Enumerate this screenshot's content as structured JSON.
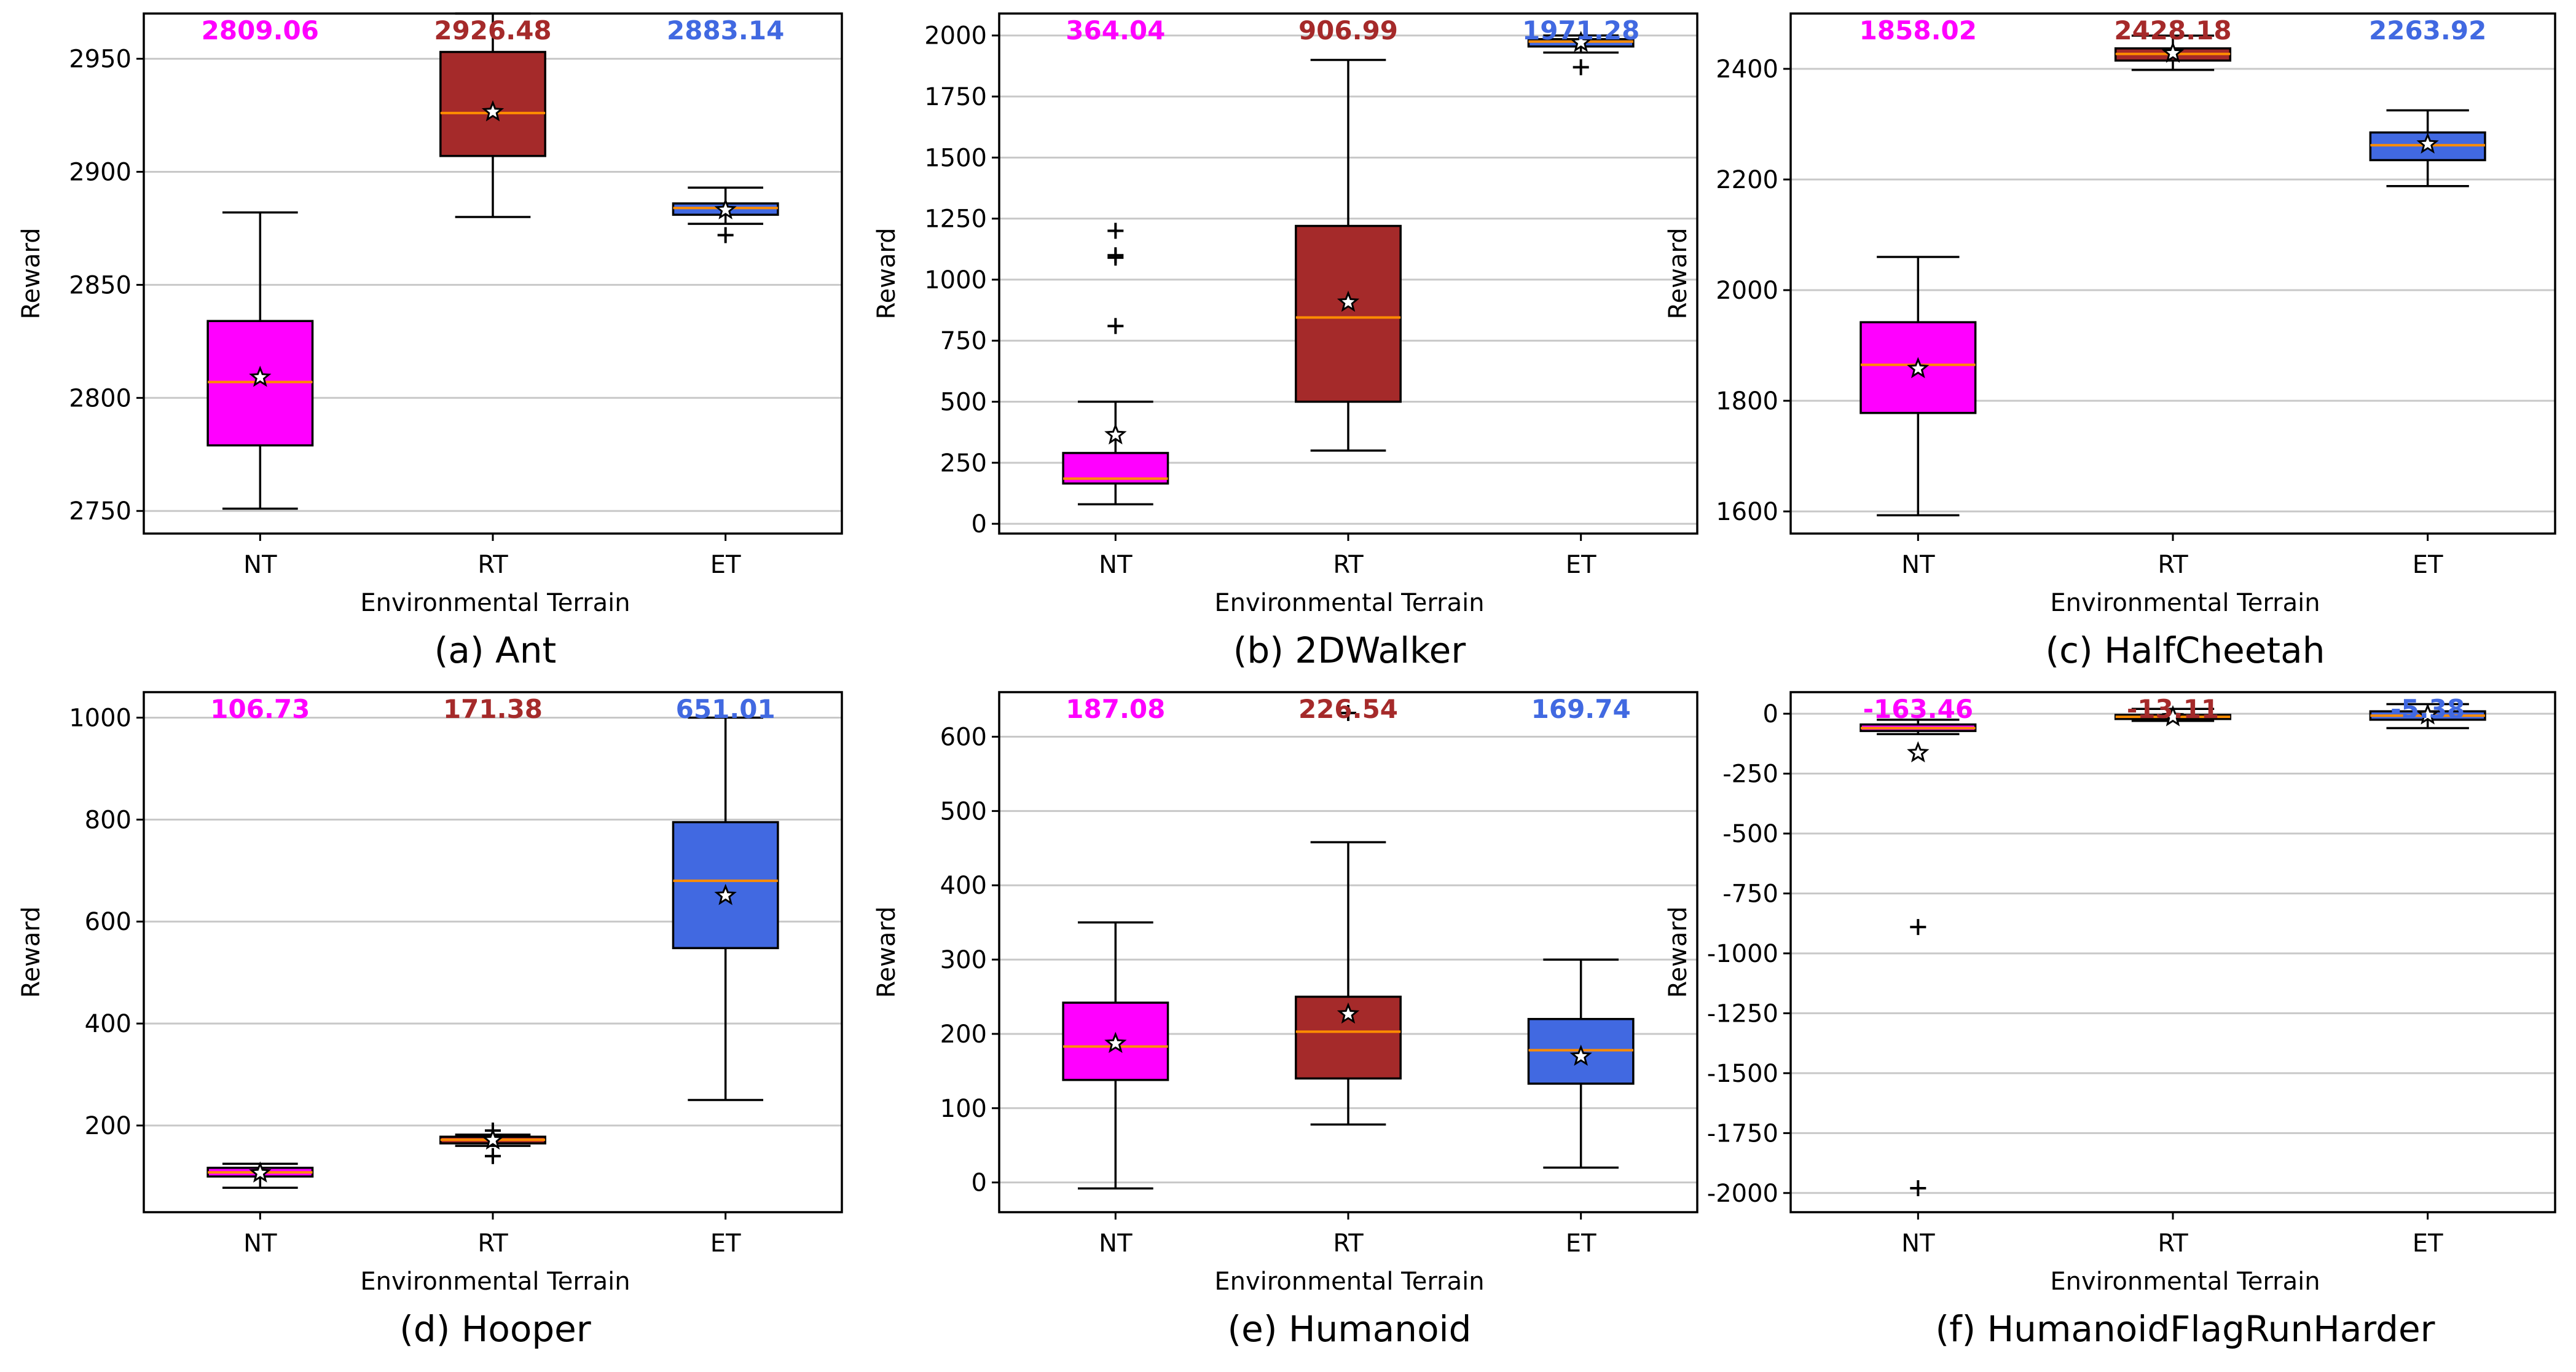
{
  "colors": {
    "NT": "#ff00ff",
    "RT": "#a52a2a",
    "ET": "#4169e1",
    "median": "#ff8c00"
  },
  "chart_data": [
    {
      "type": "box",
      "caption": "(a) Ant",
      "title": "",
      "xlabel": "Environmental  Terrain",
      "ylabel": "Reward",
      "categories": [
        "NT",
        "RT",
        "ET"
      ],
      "ylim": [
        2740,
        2970
      ],
      "yticks": [
        2750,
        2800,
        2850,
        2900,
        2950
      ],
      "ytick_labels": [
        "2750",
        "2800",
        "2850",
        "2900",
        "2950"
      ],
      "mean_labels": [
        "2809.06",
        "2926.48",
        "2883.14"
      ],
      "boxes": [
        {
          "name": "NT",
          "whisker_low": 2751,
          "q1": 2779,
          "median": 2807,
          "q3": 2834,
          "whisker_high": 2882,
          "mean": 2809.06,
          "outliers": []
        },
        {
          "name": "RT",
          "whisker_low": 2880,
          "q1": 2907,
          "median": 2926,
          "q3": 2953,
          "whisker_high": 2970,
          "mean": 2926.48,
          "outliers": []
        },
        {
          "name": "ET",
          "whisker_low": 2877,
          "q1": 2881,
          "median": 2884,
          "q3": 2886,
          "whisker_high": 2893,
          "mean": 2883.14,
          "outliers": [
            2872
          ]
        }
      ]
    },
    {
      "type": "box",
      "caption": "(b) 2DWalker",
      "title": "",
      "xlabel": "Environmental  Terrain",
      "ylabel": "Reward",
      "categories": [
        "NT",
        "RT",
        "ET"
      ],
      "ylim": [
        -40,
        2090
      ],
      "yticks": [
        0,
        250,
        500,
        750,
        1000,
        1250,
        1500,
        1750,
        2000
      ],
      "ytick_labels": [
        "0",
        "250",
        "500",
        "750",
        "1000",
        "1250",
        "1500",
        "1750",
        "2000"
      ],
      "mean_labels": [
        "364.04",
        "906.99",
        "1971.28"
      ],
      "boxes": [
        {
          "name": "NT",
          "whisker_low": 80,
          "q1": 165,
          "median": 185,
          "q3": 290,
          "whisker_high": 500,
          "mean": 364.04,
          "outliers": [
            810,
            1090,
            1100,
            1200
          ]
        },
        {
          "name": "RT",
          "whisker_low": 300,
          "q1": 500,
          "median": 845,
          "q3": 1220,
          "whisker_high": 1900,
          "mean": 906.99,
          "outliers": []
        },
        {
          "name": "ET",
          "whisker_low": 1930,
          "q1": 1955,
          "median": 1975,
          "q3": 1985,
          "whisker_high": 2000,
          "mean": 1971.28,
          "outliers": [
            1870
          ]
        }
      ]
    },
    {
      "type": "box",
      "caption": "(c) HalfCheetah",
      "title": "",
      "xlabel": "Environmental  Terrain",
      "ylabel": "Reward",
      "categories": [
        "NT",
        "RT",
        "ET"
      ],
      "ylim": [
        1560,
        2500
      ],
      "yticks": [
        1600,
        1800,
        2000,
        2200,
        2400
      ],
      "ytick_labels": [
        "1600",
        "1800",
        "2000",
        "2200",
        "2400"
      ],
      "mean_labels": [
        "1858.02",
        "2428.18",
        "2263.92"
      ],
      "boxes": [
        {
          "name": "NT",
          "whisker_low": 1593,
          "q1": 1778,
          "median": 1865,
          "q3": 1942,
          "whisker_high": 2060,
          "mean": 1858.02,
          "outliers": []
        },
        {
          "name": "RT",
          "whisker_low": 2398,
          "q1": 2415,
          "median": 2427,
          "q3": 2437,
          "whisker_high": 2460,
          "mean": 2428.18,
          "outliers": []
        },
        {
          "name": "ET",
          "whisker_low": 2188,
          "q1": 2235,
          "median": 2262,
          "q3": 2285,
          "whisker_high": 2325,
          "mean": 2263.92,
          "outliers": []
        }
      ]
    },
    {
      "type": "box",
      "caption": "(d) Hooper",
      "title": "",
      "xlabel": "Environmental  Terrain",
      "ylabel": "Reward",
      "categories": [
        "NT",
        "RT",
        "ET"
      ],
      "ylim": [
        30,
        1050
      ],
      "yticks": [
        200,
        400,
        600,
        800,
        1000
      ],
      "ytick_labels": [
        "200",
        "400",
        "600",
        "800",
        "1000"
      ],
      "mean_labels": [
        "106.73",
        "171.38",
        "651.01"
      ],
      "boxes": [
        {
          "name": "NT",
          "whisker_low": 78,
          "q1": 100,
          "median": 108,
          "q3": 117,
          "whisker_high": 125,
          "mean": 106.73,
          "outliers": []
        },
        {
          "name": "RT",
          "whisker_low": 160,
          "q1": 165,
          "median": 172,
          "q3": 178,
          "whisker_high": 182,
          "mean": 171.38,
          "outliers": [
            140,
            190
          ]
        },
        {
          "name": "ET",
          "whisker_low": 250,
          "q1": 548,
          "median": 680,
          "q3": 795,
          "whisker_high": 1000,
          "mean": 651.01,
          "outliers": []
        }
      ]
    },
    {
      "type": "box",
      "caption": "(e) Humanoid",
      "title": "",
      "xlabel": "Environmental  Terrain",
      "ylabel": "Reward",
      "categories": [
        "NT",
        "RT",
        "ET"
      ],
      "ylim": [
        -40,
        660
      ],
      "yticks": [
        0,
        100,
        200,
        300,
        400,
        500,
        600
      ],
      "ytick_labels": [
        "0",
        "100",
        "200",
        "300",
        "400",
        "500",
        "600"
      ],
      "mean_labels": [
        "187.08",
        "226.54",
        "169.74"
      ],
      "boxes": [
        {
          "name": "NT",
          "whisker_low": -8,
          "q1": 138,
          "median": 183,
          "q3": 242,
          "whisker_high": 350,
          "mean": 187.08,
          "outliers": []
        },
        {
          "name": "RT",
          "whisker_low": 78,
          "q1": 140,
          "median": 203,
          "q3": 250,
          "whisker_high": 458,
          "mean": 226.54,
          "outliers": [
            632
          ]
        },
        {
          "name": "ET",
          "whisker_low": 20,
          "q1": 133,
          "median": 178,
          "q3": 220,
          "whisker_high": 300,
          "mean": 169.74,
          "outliers": []
        }
      ]
    },
    {
      "type": "box",
      "caption": "(f) HumanoidFlagRunHarder",
      "title": "",
      "xlabel": "Environmental  Terrain",
      "ylabel": "Reward",
      "categories": [
        "NT",
        "RT",
        "ET"
      ],
      "ylim": [
        -2080,
        90
      ],
      "yticks": [
        -2000,
        -1750,
        -1500,
        -1250,
        -1000,
        -750,
        -500,
        -250,
        0
      ],
      "ytick_labels": [
        "-2000",
        "-1750",
        "-1500",
        "-1250",
        "-1000",
        "-750",
        "-500",
        "-250",
        "0"
      ],
      "mean_labels": [
        "-163.46",
        "-13.11",
        "-5.38"
      ],
      "boxes": [
        {
          "name": "NT",
          "whisker_low": -85,
          "q1": -72,
          "median": -60,
          "q3": -45,
          "whisker_high": -25,
          "mean": -163.46,
          "outliers": [
            -890,
            -1980
          ]
        },
        {
          "name": "RT",
          "whisker_low": -30,
          "q1": -22,
          "median": -13,
          "q3": -5,
          "whisker_high": 20,
          "mean": -13.11,
          "outliers": []
        },
        {
          "name": "ET",
          "whisker_low": -60,
          "q1": -25,
          "median": -8,
          "q3": 10,
          "whisker_high": 40,
          "mean": -5.38,
          "outliers": []
        }
      ]
    }
  ]
}
